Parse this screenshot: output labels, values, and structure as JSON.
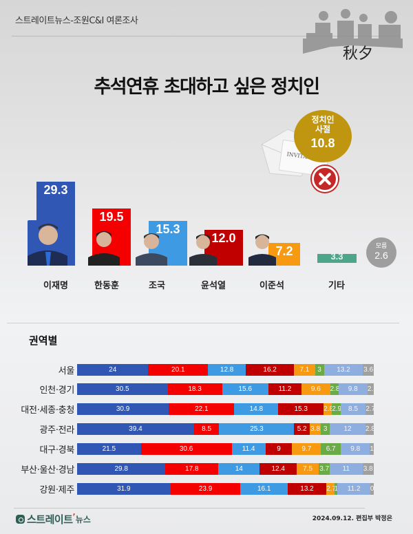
{
  "header": {
    "source": "스트레이트뉴스-조원C&I 여론조사",
    "deco_text": "秋夕",
    "title": "추석연휴 초대하고 싶은 정치인"
  },
  "refuse_badge": {
    "label_line1": "정치인",
    "label_line2": "사절",
    "value": "10.8",
    "envelope_text": "INVITATION"
  },
  "unknown_badge": {
    "label": "모름",
    "value": "2.6"
  },
  "regional": {
    "title": "권역별"
  },
  "footer": {
    "logo": "스트레이트",
    "logo_sub": "뉴스",
    "credit": "2024.09.12. 편집부 박정은"
  },
  "colors": {
    "lee_jm": "#3157b5",
    "han_dh": "#f50000",
    "cho_k": "#3e9be3",
    "yoon_sy": "#c00000",
    "lee_js": "#f79a12",
    "etc": "#4da58a",
    "regional_etc": "#6aab46",
    "regional_refuse": "#8faee0",
    "regional_unknown": "#a0a0a0",
    "refuse_badge": "#c0950f"
  },
  "chart_data": [
    {
      "type": "bar",
      "title": "추석연휴 초대하고 싶은 정치인",
      "categories": [
        "이재명",
        "한동훈",
        "조국",
        "윤석열",
        "이준석",
        "기타",
        "정치인 사절",
        "모름"
      ],
      "values": [
        29.3,
        19.5,
        15.3,
        12.0,
        7.2,
        3.3,
        10.8,
        2.6
      ],
      "xlabel": "",
      "ylabel": "%",
      "ylim": [
        0,
        30
      ],
      "grid": false
    },
    {
      "type": "bar",
      "stacked": true,
      "orientation": "horizontal",
      "title": "권역별",
      "categories": [
        "서울",
        "인천·경기",
        "대전·세종·충청",
        "광주·전라",
        "대구·경북",
        "부산·울산·경남",
        "강원·제주"
      ],
      "series": [
        {
          "name": "이재명",
          "color": "#3157b5",
          "values": [
            24.0,
            30.5,
            30.9,
            39.4,
            21.5,
            29.8,
            31.9
          ]
        },
        {
          "name": "한동훈",
          "color": "#f50000",
          "values": [
            20.1,
            18.3,
            22.1,
            8.5,
            30.6,
            17.8,
            23.9
          ]
        },
        {
          "name": "조국",
          "color": "#3e9be3",
          "values": [
            12.8,
            15.6,
            14.8,
            25.3,
            11.4,
            14,
            16.1
          ]
        },
        {
          "name": "윤석열",
          "color": "#c00000",
          "values": [
            16.2,
            11.2,
            15.3,
            5.2,
            9,
            12.4,
            13.2
          ]
        },
        {
          "name": "이준석",
          "color": "#f79a12",
          "values": [
            7.1,
            9.6,
            2.8,
            3.8,
            9.7,
            7.5,
            2.7
          ]
        },
        {
          "name": "기타",
          "color": "#6aab46",
          "values": [
            3,
            2.8,
            2.9,
            3,
            6.7,
            3.7,
            1.1
          ]
        },
        {
          "name": "정치인 사절",
          "color": "#8faee0",
          "values": [
            13.2,
            9.8,
            8.5,
            12,
            9.8,
            11,
            11.2
          ]
        },
        {
          "name": "모름",
          "color": "#a0a0a0",
          "values": [
            3.6,
            2.1,
            2.7,
            2.8,
            1.3,
            3.8,
            0
          ]
        }
      ],
      "xlim": [
        0,
        100
      ]
    }
  ]
}
